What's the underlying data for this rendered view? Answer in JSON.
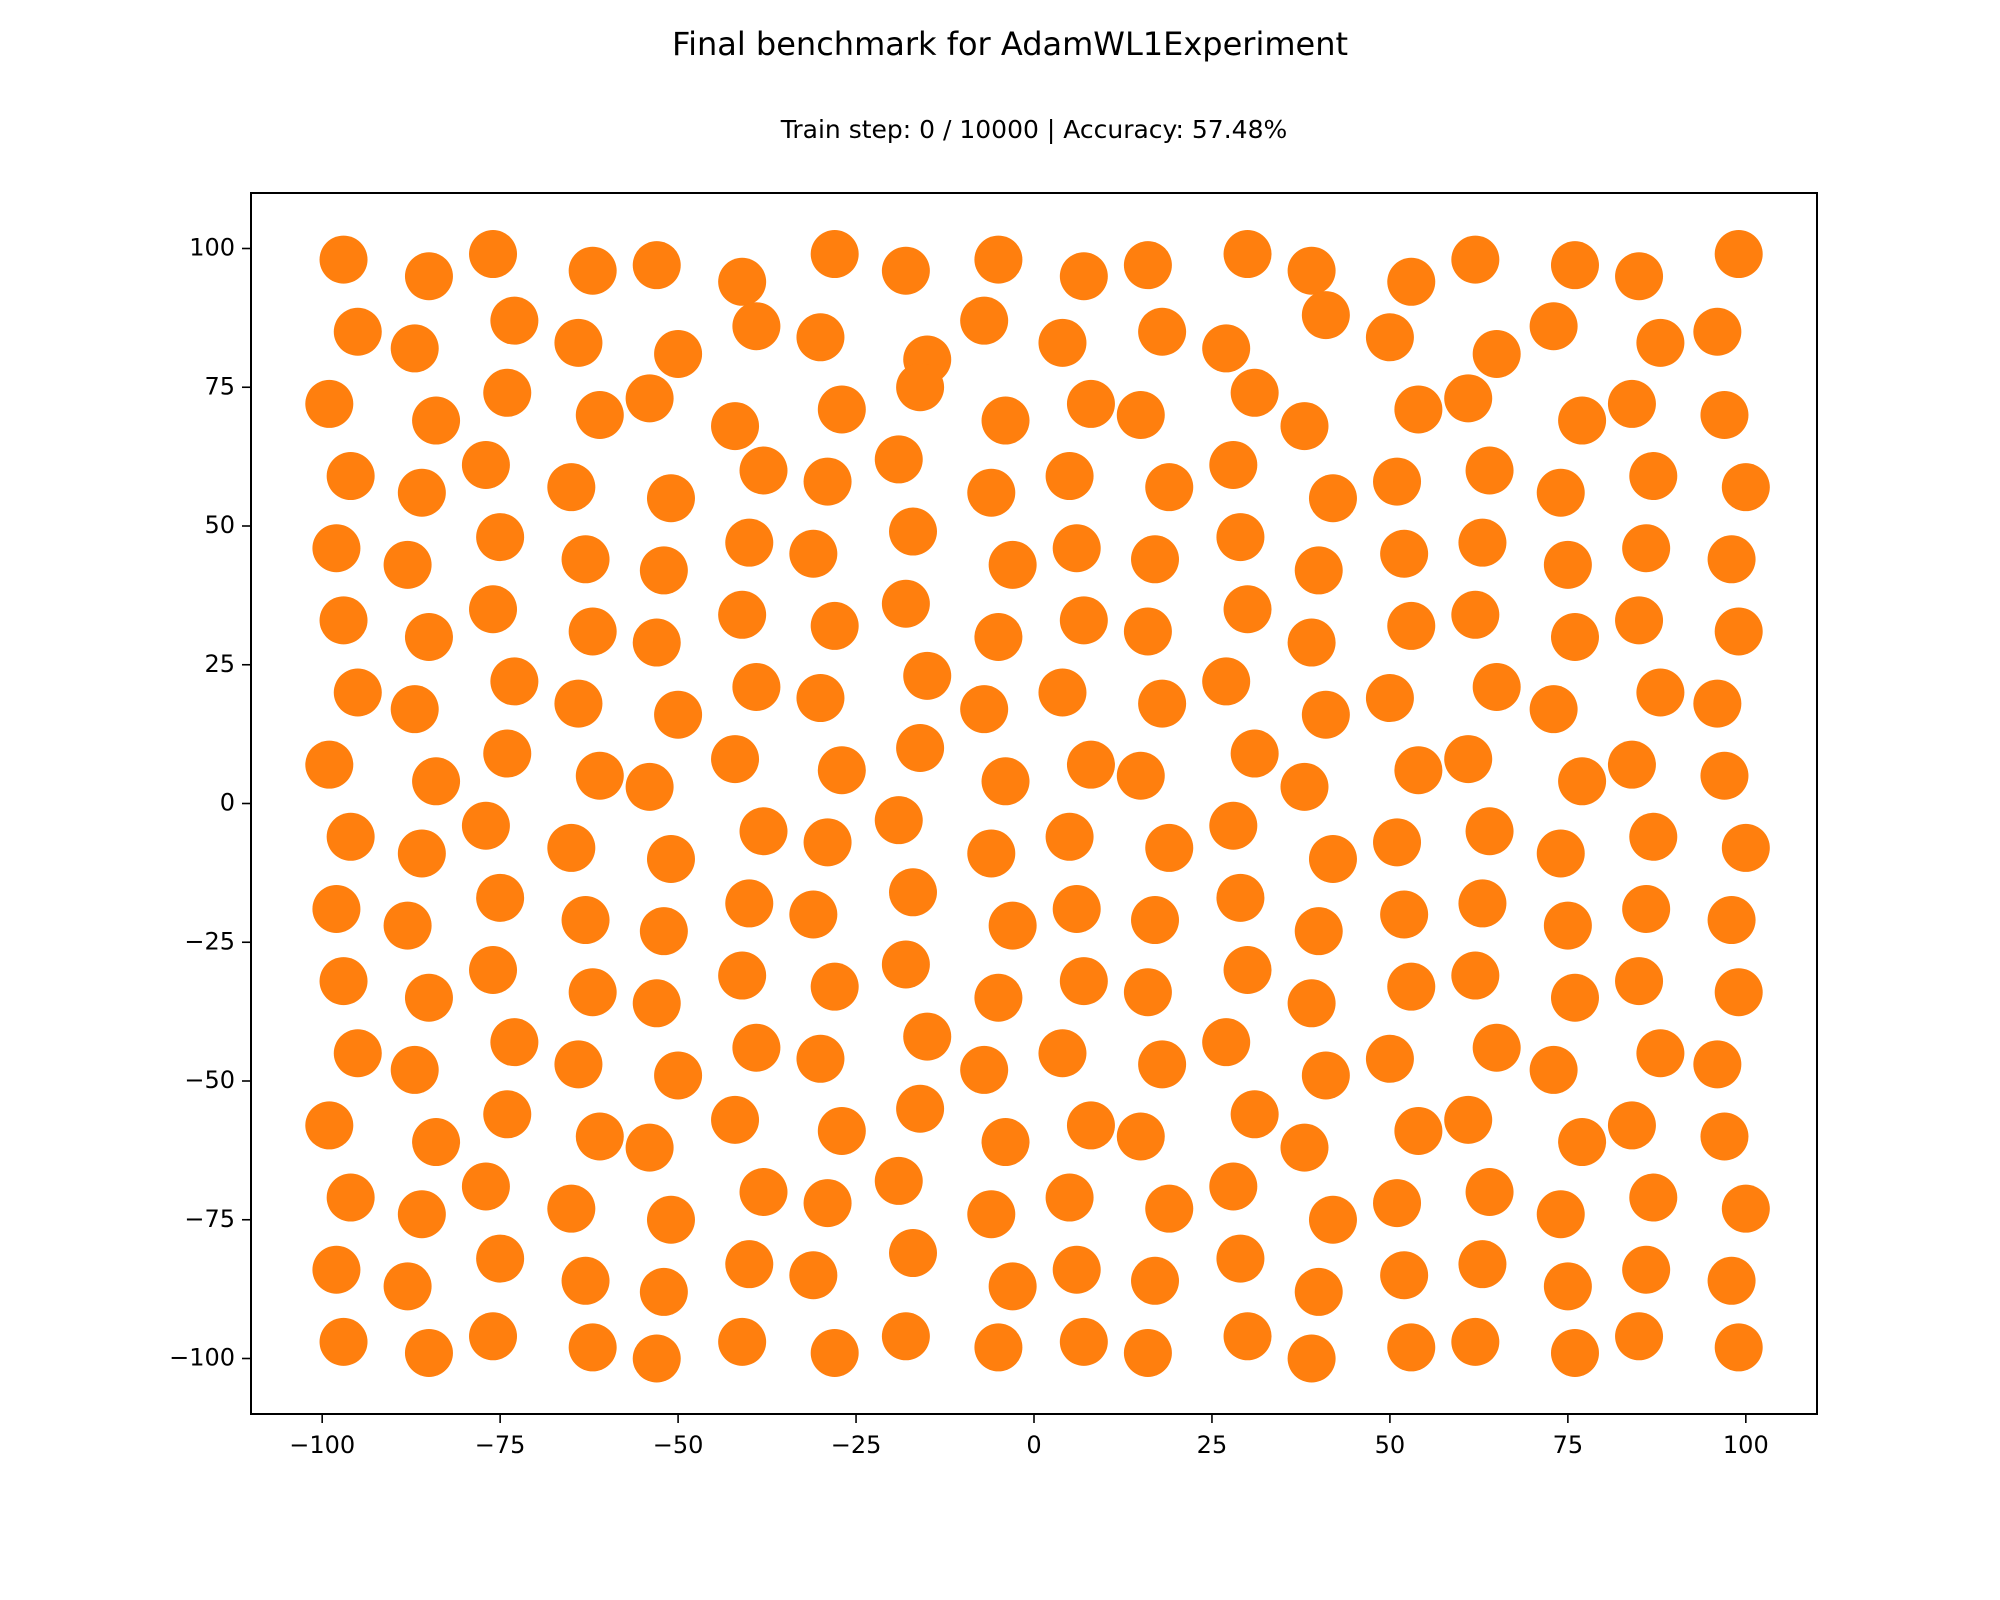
{
  "chart_data": {
    "type": "scatter",
    "title": "Final benchmark for AdamWL1Experiment",
    "subtitle": "Train step: 0 / 10000 | Accuracy: 57.48%",
    "color": "#ff7f0e",
    "xlim": [
      -110,
      110
    ],
    "ylim": [
      -110,
      110
    ],
    "xticks": [
      {
        "value": -100,
        "label": "−100"
      },
      {
        "value": -75,
        "label": "−75"
      },
      {
        "value": -50,
        "label": "−50"
      },
      {
        "value": -25,
        "label": "−25"
      },
      0,
      25,
      50,
      75,
      100
    ],
    "yticks": [
      {
        "value": -100,
        "label": "−100"
      },
      {
        "value": -75,
        "label": "−75"
      },
      {
        "value": -50,
        "label": "−50"
      },
      {
        "value": -25,
        "label": "−25"
      },
      0,
      25,
      50,
      75,
      100
    ],
    "x": [
      -97,
      -85,
      -76,
      -62,
      -53,
      -41,
      -28,
      -18,
      -5,
      7,
      16,
      30,
      39,
      53,
      62,
      76,
      85,
      99,
      -95,
      -87,
      -73,
      -64,
      -50,
      -39,
      -30,
      -15,
      -7,
      4,
      18,
      27,
      41,
      50,
      65,
      73,
      88,
      96,
      -99,
      -84,
      -74,
      -61,
      -54,
      -42,
      -27,
      -16,
      -4,
      8,
      15,
      31,
      38,
      54,
      61,
      77,
      84,
      97,
      -96,
      -86,
      -77,
      -65,
      -51,
      -38,
      -29,
      -19,
      -6,
      5,
      19,
      28,
      42,
      51,
      64,
      74,
      87,
      100,
      -98,
      -88,
      -75,
      -63,
      -52,
      -40,
      -31,
      -17,
      -3,
      6,
      17,
      29,
      40,
      52,
      63,
      75,
      86,
      98,
      -97,
      -85,
      -76,
      -62,
      -53,
      -41,
      -28,
      -18,
      -5,
      7,
      16,
      30,
      39,
      53,
      62,
      76,
      85,
      99,
      -95,
      -87,
      -73,
      -64,
      -50,
      -39,
      -30,
      -15,
      -7,
      4,
      18,
      27,
      41,
      50,
      65,
      73,
      88,
      96,
      -99,
      -84,
      -74,
      -61,
      -54,
      -42,
      -27,
      -16,
      -4,
      8,
      15,
      31,
      38,
      54,
      61,
      77,
      84,
      97,
      -96,
      -86,
      -77,
      -65,
      -51,
      -38,
      -29,
      -19,
      -6,
      5,
      19,
      28,
      42,
      51,
      64,
      74,
      87,
      100,
      -98,
      -88,
      -75,
      -63,
      -52,
      -40,
      -31,
      -17,
      -3,
      6,
      17,
      29,
      40,
      52,
      63,
      75,
      86,
      98,
      -97,
      -85,
      -76,
      -62,
      -53,
      -41,
      -28,
      -18,
      -5,
      7,
      16,
      30,
      39,
      53,
      62,
      76,
      85,
      99,
      -95,
      -87,
      -73,
      -64,
      -50,
      -39,
      -30,
      -15,
      -7,
      4,
      18,
      27,
      41,
      50,
      65,
      73,
      88,
      96,
      -99,
      -84,
      -74,
      -61,
      -54,
      -42,
      -27,
      -16,
      -4,
      8,
      15,
      31,
      38,
      54,
      61,
      77,
      84,
      97,
      -96,
      -86,
      -77,
      -65,
      -51,
      -38,
      -29,
      -19,
      -6,
      5,
      19,
      28,
      42,
      51,
      64,
      74,
      87,
      100,
      -98,
      -88,
      -75,
      -63,
      -52,
      -40,
      -31,
      -17,
      -3,
      6,
      17,
      29,
      40,
      52,
      63,
      75,
      86,
      98,
      -97,
      -85,
      -76,
      -62,
      -53,
      -41,
      -28,
      -18,
      -5,
      7,
      16,
      30,
      39,
      53,
      62,
      76,
      85,
      99
    ],
    "values": [
      98,
      95,
      99,
      96,
      97,
      94,
      99,
      96,
      98,
      95,
      97,
      99,
      96,
      94,
      98,
      97,
      95,
      99,
      85,
      82,
      87,
      83,
      81,
      86,
      84,
      80,
      87,
      83,
      85,
      82,
      88,
      84,
      81,
      86,
      83,
      85,
      72,
      69,
      74,
      70,
      73,
      68,
      71,
      75,
      69,
      72,
      70,
      74,
      68,
      71,
      73,
      69,
      72,
      70,
      59,
      56,
      61,
      57,
      55,
      60,
      58,
      62,
      56,
      59,
      57,
      61,
      55,
      58,
      60,
      56,
      59,
      57,
      46,
      43,
      48,
      44,
      42,
      47,
      45,
      49,
      43,
      46,
      44,
      48,
      42,
      45,
      47,
      43,
      46,
      44,
      33,
      30,
      35,
      31,
      29,
      34,
      32,
      36,
      30,
      33,
      31,
      35,
      29,
      32,
      34,
      30,
      33,
      31,
      20,
      17,
      22,
      18,
      16,
      21,
      19,
      23,
      17,
      20,
      18,
      22,
      16,
      19,
      21,
      17,
      20,
      18,
      7,
      4,
      9,
      5,
      3,
      8,
      6,
      10,
      4,
      7,
      5,
      9,
      3,
      6,
      8,
      4,
      7,
      5,
      -6,
      -9,
      -4,
      -8,
      -10,
      -5,
      -7,
      -3,
      -9,
      -6,
      -8,
      -4,
      -10,
      -7,
      -5,
      -9,
      -6,
      -8,
      -19,
      -22,
      -17,
      -21,
      -23,
      -18,
      -20,
      -16,
      -22,
      -19,
      -21,
      -17,
      -23,
      -20,
      -18,
      -22,
      -19,
      -21,
      -32,
      -35,
      -30,
      -34,
      -36,
      -31,
      -33,
      -29,
      -35,
      -32,
      -34,
      -30,
      -36,
      -33,
      -31,
      -35,
      -32,
      -34,
      -45,
      -48,
      -43,
      -47,
      -49,
      -44,
      -46,
      -42,
      -48,
      -45,
      -47,
      -43,
      -49,
      -46,
      -44,
      -48,
      -45,
      -47,
      -58,
      -61,
      -56,
      -60,
      -62,
      -57,
      -59,
      -55,
      -61,
      -58,
      -60,
      -56,
      -62,
      -59,
      -57,
      -61,
      -58,
      -60,
      -71,
      -74,
      -69,
      -73,
      -75,
      -70,
      -72,
      -68,
      -74,
      -71,
      -73,
      -69,
      -75,
      -72,
      -70,
      -74,
      -71,
      -73,
      -84,
      -87,
      -82,
      -86,
      -88,
      -83,
      -85,
      -81,
      -87,
      -84,
      -86,
      -82,
      -88,
      -85,
      -83,
      -87,
      -84,
      -86,
      -97,
      -99,
      -96,
      -98,
      -100,
      -97,
      -99,
      -96,
      -98,
      -97,
      -99,
      -96,
      -100,
      -98,
      -97,
      -99,
      -96,
      -98
    ]
  }
}
